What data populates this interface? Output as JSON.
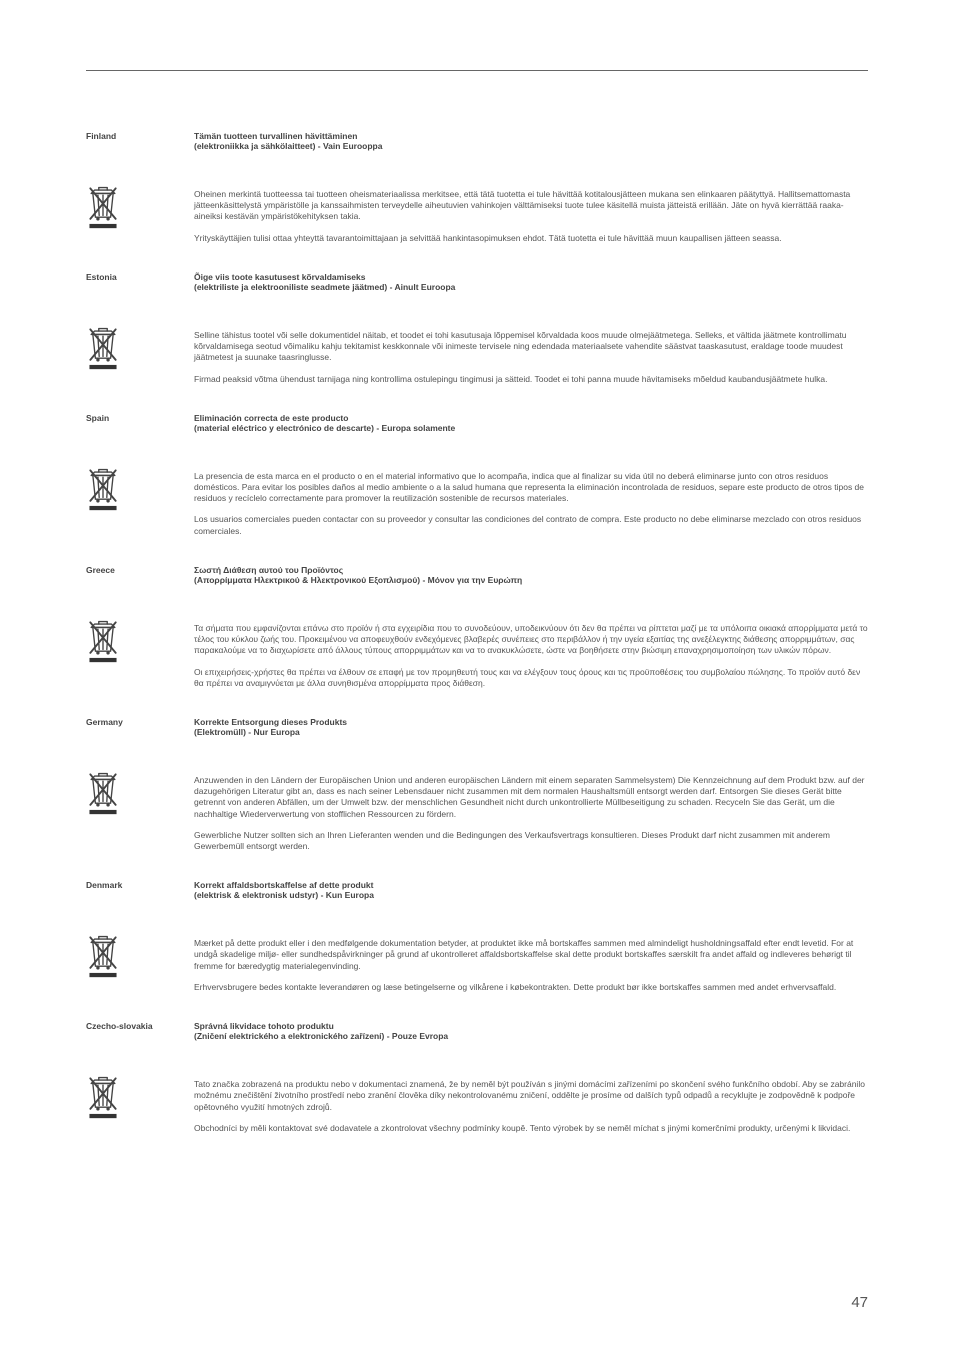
{
  "page_number": "47",
  "sections": [
    {
      "country": "Finland",
      "title": "Tämän tuotteen turvallinen hävittäminen",
      "subtitle": "(elektroniikka ja sähkölaitteet) - Vain Eurooppa",
      "p1": "Oheinen merkintä tuotteessa tai tuotteen oheismateriaalissa merkitsee, että tätä tuotetta ei tule hävittää kotitalousjätteen mukana sen elinkaaren päätyttyä. Hallitsemattomasta jätteenkäsittelystä ympäristölle ja kanssaihmisten terveydelle aiheutuvien vahinkojen välttämiseksi tuote tulee käsitellä muista jätteistä erillään. Jäte on hyvä kierrättää raaka-aineiksi kestävän ympäristökehityksen takia.",
      "p2": "Yrityskäyttäjien tulisi ottaa yhteyttä tavarantoimittajaan ja selvittää hankintasopimuksen ehdot. Tätä tuotetta ei tule hävittää muun kaupallisen jätteen seassa."
    },
    {
      "country": "Estonia",
      "title": "Õige viis toote kasutusest kõrvaldamiseks",
      "subtitle": "(elektriliste ja elektrooniliste seadmete jäätmed) - Ainult Euroopa",
      "p1": "Selline tähistus tootel või selle dokumentidel näitab, et toodet ei tohi kasutusaja lõppemisel kõrvaldada koos muude olmejäätmetega. Selleks, et vältida jäätmete kontrollimatu kõrvaldamisega seotud võimaliku kahju tekitamist keskkonnale või inimeste tervisele ning edendada materiaalsete vahendite säästvat taaskasutust, eraldage toode muudest jäätmetest ja suunake taasringlusse.",
      "p2": "Firmad peaksid võtma ühendust tarnijaga ning kontrollima ostulepingu tingimusi ja sätteid. Toodet ei tohi panna muude hävitamiseks mõeldud kaubandusjäätmete hulka."
    },
    {
      "country": "Spain",
      "title": "Eliminación correcta de este producto",
      "subtitle": "(material eléctrico y electrónico de descarte) - Europa solamente",
      "p1": "La presencia de esta marca en el producto o en el material informativo que lo acompaña, indica que al finalizar su vida útil no deberá eliminarse junto con otros residuos domésticos. Para evitar los posibles daños al medio ambiente o a la salud humana que representa la eliminación incontrolada de residuos, separe este producto de otros tipos de residuos y recíclelo correctamente para promover la reutilización sostenible de recursos materiales.",
      "p2": "Los usuarios comerciales pueden contactar con su proveedor y consultar las condiciones del contrato de compra. Este producto no debe eliminarse mezclado con otros residuos comerciales."
    },
    {
      "country": "Greece",
      "title": "Σωστή Διάθεση αυτού του Προϊόντος",
      "subtitle": "(Απορρίμματα Ηλεκτρικού & Ηλεκτρονικού Εξοπλισμού) - Μόνον για την Ευρώπη",
      "p1": "Τα σήματα που εμφανίζονται επάνω στο προϊόν ή στα εγχειρίδια που το συνοδεύουν, υποδεικνύουν ότι δεν θα πρέπει να ρίπτεται μαζί με τα υπόλοιπα οικιακά απορρίμματα μετά το τέλος του κύκλου ζωής του. Προκειμένου να αποφευχθούν ενδεχόμενες βλαβερές συνέπειες στο περιβάλλον ή την υγεία εξαιτίας της ανεξέλεγκτης διάθεσης απορριμμάτων, σας παρακαλούμε να το διαχωρίσετε από άλλους τύπους απορριμμάτων και να το ανακυκλώσετε, ώστε να βοηθήσετε στην βιώσιμη επαναχρησιμοποίηση των υλικών πόρων.",
      "p2": "Οι επιχειρήσεις-χρήστες θα πρέπει να έλθουν σε επαφή με τον προμηθευτή τους και να ελέγξουν τους όρους και τις προϋποθέσεις του συμβολαίου πώλησης. Το προϊόν αυτό δεν θα πρέπει να αναμιγνύεται με άλλα συνηθισμένα απορρίμματα προς διάθεση."
    },
    {
      "country": "Germany",
      "title": "Korrekte Entsorgung dieses Produkts",
      "subtitle": "(Elektromüll) - Nur Europa",
      "p1": "Anzuwenden in den Ländern der Europäischen Union und anderen europäischen Ländern mit einem separaten Sammelsystem) Die Kennzeichnung auf dem Produkt bzw. auf der dazugehörigen Literatur gibt an, dass es nach seiner Lebensdauer nicht zusammen mit dem normalen Haushaltsmüll entsorgt werden darf. Entsorgen Sie dieses Gerät bitte getrennt von anderen Abfällen, um der Umwelt bzw. der menschlichen Gesundheit nicht durch unkontrollierte Müllbeseitigung zu schaden. Recyceln Sie das Gerät, um die nachhaltige Wiederverwertung von stofflichen Ressourcen zu fördern.",
      "p2": "Gewerbliche Nutzer sollten sich an Ihren Lieferanten wenden und die Bedingungen des Verkaufsvertrags konsultieren. Dieses Produkt darf nicht zusammen mit anderem Gewerbemüll entsorgt werden."
    },
    {
      "country": "Denmark",
      "title": "Korrekt affaldsbortskaffelse af dette produkt",
      "subtitle": "(elektrisk & elektronisk udstyr) - Kun Europa",
      "p1": "Mærket på dette produkt eller i den medfølgende dokumentation betyder, at produktet ikke må bortskaffes sammen med almindeligt husholdningsaffald efter endt levetid. For at undgå skadelige miljø- eller sundhedspåvirkninger på grund af ukontrolleret affaldsbortskaffelse skal dette produkt bortskaffes særskilt fra andet affald og indleveres behørigt til fremme for bæredygtig materialegenvinding.",
      "p2": "Erhvervsbrugere bedes kontakte leverandøren og læse betingelserne og vilkårene i købekontrakten. Dette produkt bør ikke bortskaffes sammen med andet erhvervsaffald."
    },
    {
      "country": "Czecho-slovakia",
      "title": "Správná likvidace tohoto produktu",
      "subtitle": "(Zničení elektrického a elektronického zařízení) - Pouze Evropa",
      "p1": "Tato značka zobrazená na produktu nebo v dokumentaci znamená, že by neměl být používán s jinými domácími zařízeními po skončení svého funkčního období. Aby se zabránilo možnému znečištění životního prostředí nebo zranění člověka díky nekontrolovanému zničení, oddělte je prosíme od dalších typů odpadů a recyklujte je zodpovědně k podpoře opětovného využití hmotných zdrojů.",
      "p2": "Obchodníci by měli kontaktovat své dodavatele a zkontrolovat všechny podmínky koupě. Tento výrobek by se neměl míchat s jinými komerčními produkty, určenými k likvidaci."
    }
  ]
}
